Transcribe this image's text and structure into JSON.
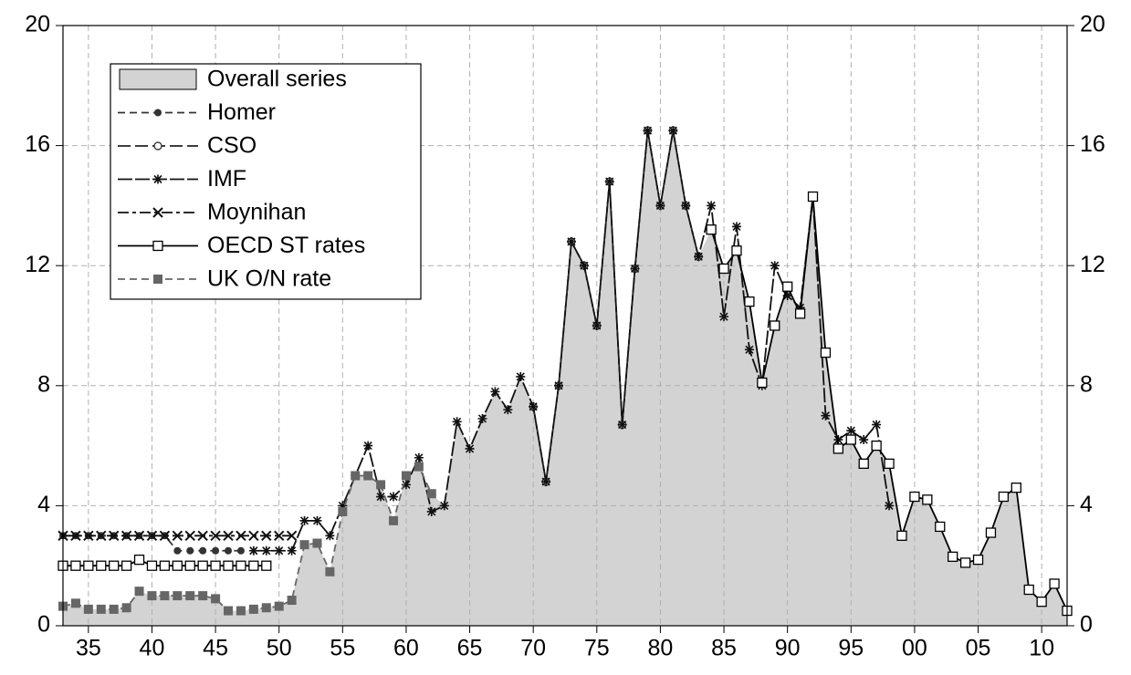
{
  "chart_data": {
    "type": "line",
    "xlim": [
      1933,
      2012
    ],
    "ylim": [
      0,
      20
    ],
    "y2lim": [
      0,
      20
    ],
    "yticks": [
      0,
      4,
      8,
      12,
      16,
      20
    ],
    "y2ticks": [
      0,
      4,
      8,
      12,
      16,
      20
    ],
    "xticks": [
      {
        "value": 1935,
        "label": "35"
      },
      {
        "value": 1940,
        "label": "40"
      },
      {
        "value": 1945,
        "label": "45"
      },
      {
        "value": 1950,
        "label": "50"
      },
      {
        "value": 1955,
        "label": "55"
      },
      {
        "value": 1960,
        "label": "60"
      },
      {
        "value": 1965,
        "label": "65"
      },
      {
        "value": 1970,
        "label": "70"
      },
      {
        "value": 1975,
        "label": "75"
      },
      {
        "value": 1980,
        "label": "80"
      },
      {
        "value": 1985,
        "label": "85"
      },
      {
        "value": 1990,
        "label": "90"
      },
      {
        "value": 1995,
        "label": "95"
      },
      {
        "value": 2000,
        "label": "00"
      },
      {
        "value": 2005,
        "label": "05"
      },
      {
        "value": 2010,
        "label": "10"
      }
    ],
    "grid": true,
    "legend": "upper left",
    "series": [
      {
        "name": "Overall series",
        "kind": "area",
        "color": "#d3d3d3",
        "x": [
          1933,
          1934,
          1935,
          1936,
          1937,
          1938,
          1939,
          1940,
          1941,
          1942,
          1943,
          1944,
          1945,
          1946,
          1947,
          1948,
          1949,
          1950,
          1951,
          1952,
          1953,
          1954,
          1955,
          1956,
          1957,
          1958,
          1959,
          1960,
          1961,
          1962,
          1963,
          1964,
          1965,
          1966,
          1967,
          1968,
          1969,
          1970,
          1971,
          1972,
          1973,
          1974,
          1975,
          1976,
          1977,
          1978,
          1979,
          1980,
          1981,
          1982,
          1983,
          1984,
          1985,
          1986,
          1987,
          1988,
          1989,
          1990,
          1991,
          1992,
          1993,
          1994,
          1995,
          1996,
          1997,
          1998,
          1999,
          2000,
          2001,
          2002,
          2003,
          2004,
          2005,
          2006,
          2007,
          2008,
          2009,
          2010,
          2011,
          2012
        ],
        "values": [
          0.65,
          0.75,
          0.55,
          0.55,
          0.55,
          0.6,
          1.15,
          1.0,
          1.0,
          1.0,
          1.0,
          1.0,
          0.9,
          0.5,
          0.5,
          0.55,
          0.6,
          0.65,
          0.85,
          2.7,
          2.75,
          1.8,
          3.8,
          5.0,
          5.0,
          4.7,
          3.5,
          5.0,
          5.3,
          4.4,
          4.0,
          6.8,
          5.9,
          6.9,
          7.8,
          7.2,
          8.3,
          7.3,
          4.8,
          8.0,
          12.8,
          12.0,
          10.0,
          14.8,
          6.7,
          11.9,
          16.5,
          14.0,
          16.5,
          14.0,
          12.3,
          13.2,
          11.9,
          12.5,
          10.8,
          8.1,
          10.0,
          11.3,
          10.4,
          14.3,
          9.1,
          5.9,
          6.2,
          5.4,
          6.0,
          5.4,
          3.0,
          4.3,
          4.2,
          3.3,
          2.3,
          2.1,
          2.2,
          3.1,
          4.3,
          4.6,
          1.2,
          0.8,
          1.4,
          0.5
        ]
      },
      {
        "name": "Homer",
        "color": "#333333",
        "dash": "8,5",
        "marker": "dot",
        "x": [
          1933,
          1934,
          1935,
          1936,
          1937,
          1938,
          1939,
          1940,
          1941,
          1942,
          1943,
          1944,
          1945,
          1946,
          1947
        ],
        "values": [
          3,
          3,
          3,
          3,
          3,
          3,
          3,
          3,
          3,
          2.5,
          2.5,
          2.5,
          2.5,
          2.5,
          2.5
        ]
      },
      {
        "name": "CSO",
        "color": "#222222",
        "dash": "14,5",
        "marker": "circle",
        "x": [
          1970,
          1971,
          1972,
          1973,
          1974,
          1975,
          1976,
          1977,
          1978,
          1979,
          1980,
          1981,
          1982,
          1983
        ],
        "values": [
          7.3,
          4.8,
          8.0,
          12.8,
          12.0,
          10.0,
          14.8,
          6.7,
          11.9,
          16.5,
          14.0,
          16.5,
          14.0,
          12.3
        ]
      },
      {
        "name": "IMF",
        "color": "#111111",
        "dash": "16,3",
        "marker": "star",
        "x": [
          1948,
          1949,
          1950,
          1951,
          1952,
          1953,
          1954,
          1955,
          1956,
          1957,
          1958,
          1959,
          1960,
          1961,
          1962,
          1963,
          1964,
          1965,
          1966,
          1967,
          1968,
          1969,
          1970,
          1971,
          1972,
          1973,
          1974,
          1975,
          1976,
          1977,
          1978,
          1979,
          1980,
          1981,
          1982,
          1983,
          1984,
          1985,
          1986,
          1987,
          1988,
          1989,
          1990,
          1991,
          1992,
          1993,
          1994,
          1995,
          1996,
          1997,
          1998
        ],
        "values": [
          2.5,
          2.5,
          2.5,
          2.5,
          3.5,
          3.5,
          3.0,
          4.0,
          5.0,
          6.0,
          4.3,
          4.3,
          4.7,
          5.6,
          3.8,
          4.0,
          6.8,
          5.9,
          6.9,
          7.8,
          7.2,
          8.3,
          7.3,
          4.8,
          8.0,
          12.8,
          12.0,
          10.0,
          14.8,
          6.7,
          11.9,
          16.5,
          14.0,
          16.5,
          14.0,
          12.3,
          14.0,
          10.3,
          13.3,
          9.2,
          8.0,
          12.0,
          11.0,
          10.6,
          14.3,
          7.0,
          6.2,
          6.5,
          6.2,
          6.7,
          4.0
        ]
      },
      {
        "name": "Moynihan",
        "color": "#111111",
        "dash": "12,4,4,4",
        "marker": "cross",
        "x": [
          1933,
          1934,
          1935,
          1936,
          1937,
          1938,
          1939,
          1940,
          1941,
          1942,
          1943,
          1944,
          1945,
          1946,
          1947,
          1948,
          1949,
          1950,
          1951
        ],
        "values": [
          3,
          3,
          3,
          3,
          3,
          3,
          3,
          3,
          3,
          3,
          3,
          3,
          3,
          3,
          3,
          3,
          3,
          3,
          3
        ]
      },
      {
        "name": "OECD ST rates",
        "color": "#000000",
        "dash": "none",
        "marker": "square",
        "x": [
          1933,
          1934,
          1935,
          1936,
          1937,
          1938,
          1939,
          1940,
          1941,
          1942,
          1943,
          1944,
          1945,
          1946,
          1947,
          1948,
          1949,
          1950,
          1984,
          1985,
          1986,
          1987,
          1988,
          1989,
          1990,
          1991,
          1992,
          1993,
          1994,
          1995,
          1996,
          1997,
          1998,
          1999,
          2000,
          2001,
          2002,
          2003,
          2004,
          2005,
          2006,
          2007,
          2008,
          2009,
          2010,
          2011,
          2012
        ],
        "values": [
          2,
          2,
          2,
          2,
          2,
          2,
          2.2,
          2,
          2,
          2,
          2,
          2,
          2,
          2,
          2,
          2,
          2,
          null,
          13.2,
          11.9,
          12.5,
          10.8,
          8.1,
          10.0,
          11.3,
          10.4,
          14.3,
          9.1,
          5.9,
          6.2,
          5.4,
          6.0,
          5.4,
          3.0,
          4.3,
          4.2,
          3.3,
          2.3,
          2.1,
          2.2,
          3.1,
          4.3,
          4.6,
          1.2,
          0.8,
          1.4,
          0.5
        ]
      },
      {
        "name": "UK O/N rate",
        "color": "#666666",
        "dash": "8,5",
        "marker": "filledsquare",
        "x": [
          1933,
          1934,
          1935,
          1936,
          1937,
          1938,
          1939,
          1940,
          1941,
          1942,
          1943,
          1944,
          1945,
          1946,
          1947,
          1948,
          1949,
          1950,
          1951,
          1952,
          1953,
          1954,
          1955,
          1956,
          1957,
          1958,
          1959,
          1960,
          1961,
          1962
        ],
        "values": [
          0.65,
          0.75,
          0.55,
          0.55,
          0.55,
          0.6,
          1.15,
          1.0,
          1.0,
          1.0,
          1.0,
          1.0,
          0.9,
          0.5,
          0.5,
          0.55,
          0.6,
          0.65,
          0.85,
          2.7,
          2.75,
          1.8,
          3.8,
          5.0,
          5.0,
          4.7,
          3.5,
          5.0,
          5.3,
          4.4
        ]
      }
    ]
  }
}
